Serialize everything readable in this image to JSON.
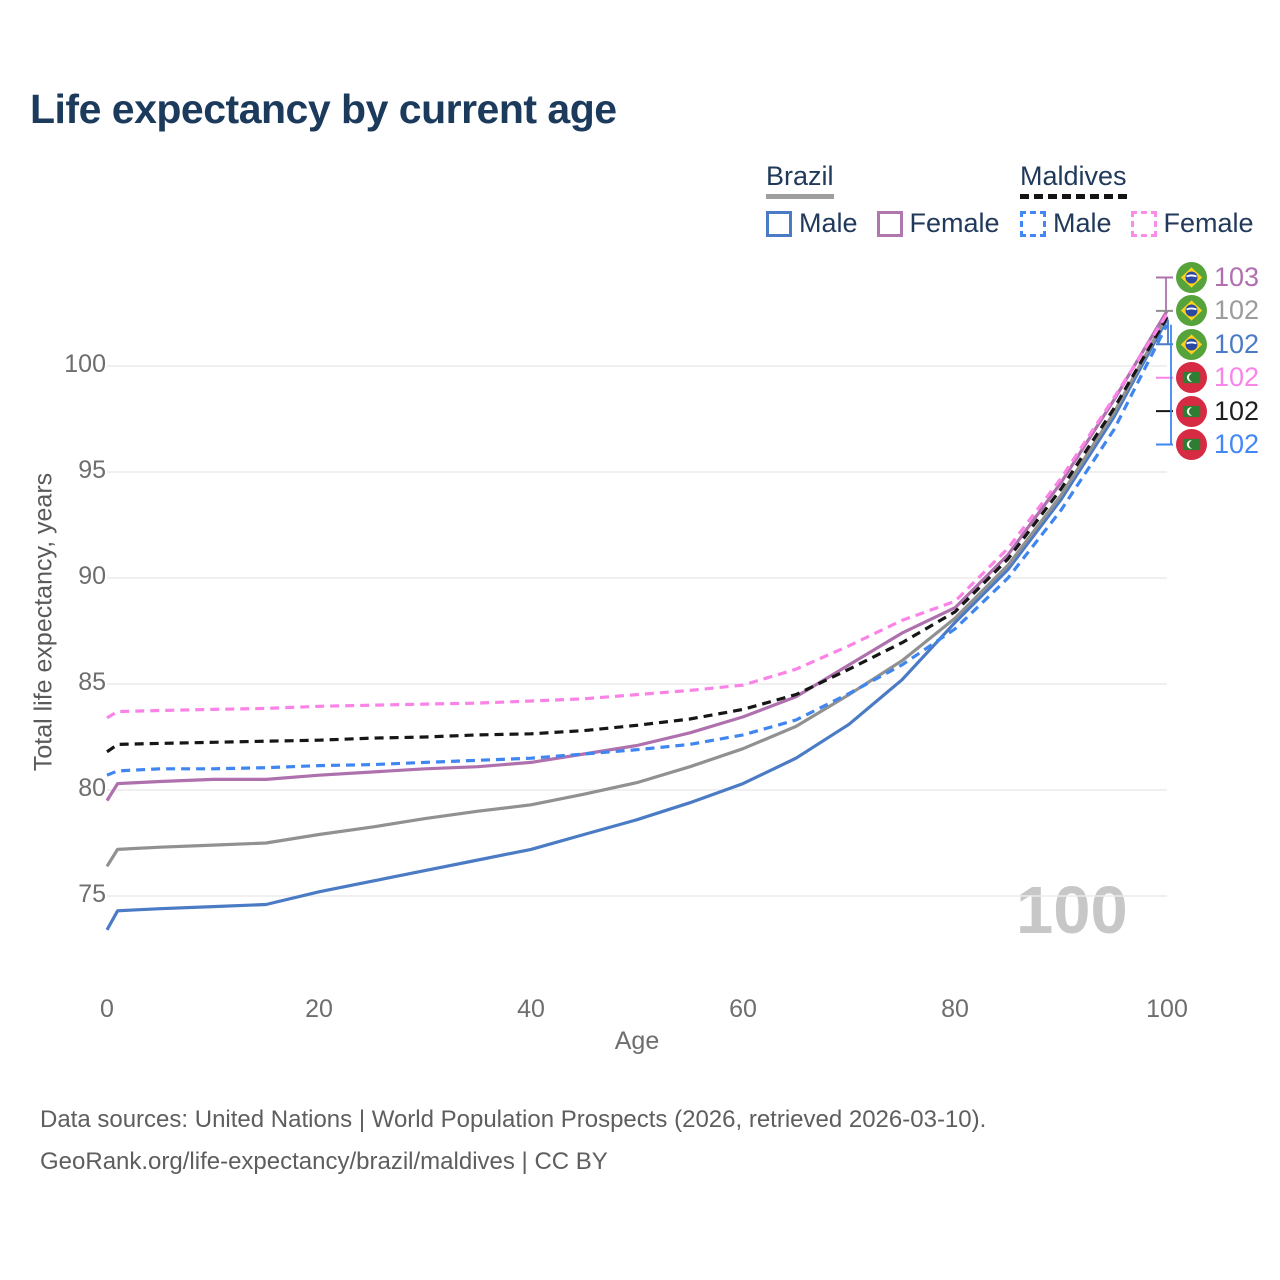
{
  "title": "Life expectancy by current age",
  "legend": {
    "groups": [
      {
        "label": "Brazil",
        "underline_style": "solid",
        "underline_color": "#9e9e9e",
        "items": [
          {
            "label": "Male",
            "color": "#4a7bc4",
            "dash": false
          },
          {
            "label": "Female",
            "color": "#b176ae",
            "dash": false
          }
        ]
      },
      {
        "label": "Maldives",
        "underline_style": "dashed",
        "underline_color": "#141414",
        "items": [
          {
            "label": "Male",
            "color": "#4287f5",
            "dash": true
          },
          {
            "label": "Female",
            "color": "#fb8be8",
            "dash": true
          }
        ]
      }
    ]
  },
  "chart_data": {
    "type": "line",
    "title": "Life expectancy by current age",
    "xlabel": "Age",
    "ylabel": "Total life expectancy, years",
    "watermark": "100",
    "x_axis": {
      "ticks": [
        0,
        20,
        40,
        60,
        80,
        100
      ],
      "range": [
        0,
        100
      ]
    },
    "y_axis": {
      "ticks": [
        75,
        80,
        85,
        90,
        95,
        100
      ],
      "range": [
        73,
        103.5
      ]
    },
    "grid": "horizontal-only",
    "legend_position": "top-right",
    "x": [
      0,
      1,
      5,
      10,
      15,
      20,
      25,
      30,
      35,
      40,
      45,
      50,
      55,
      60,
      65,
      70,
      75,
      80,
      85,
      90,
      95,
      100
    ],
    "series": [
      {
        "name": "Brazil Male",
        "country": "Brazil",
        "sex": "Male",
        "color": "#4a7bc4",
        "dash": false,
        "values": [
          73.4,
          74.3,
          74.4,
          74.5,
          74.6,
          75.2,
          75.7,
          76.2,
          76.7,
          77.2,
          77.9,
          78.6,
          79.4,
          80.3,
          81.5,
          83.1,
          85.2,
          87.9,
          90.4,
          93.7,
          97.6,
          102.2
        ],
        "end_label": {
          "text": "102",
          "color": "#4a7bc4",
          "flag": "brazil",
          "row": 2,
          "leader": true
        }
      },
      {
        "name": "Brazil Both sexes",
        "country": "Brazil",
        "sex": "Both",
        "color": "#919191",
        "dash": false,
        "values": [
          76.4,
          77.2,
          77.3,
          77.4,
          77.5,
          77.9,
          78.25,
          78.65,
          79.0,
          79.3,
          79.8,
          80.35,
          81.1,
          81.95,
          83.0,
          84.5,
          86.1,
          88.1,
          90.6,
          93.9,
          97.8,
          102.35
        ],
        "end_label": {
          "text": "102",
          "color": "#9c9c9c",
          "flag": "brazil",
          "row": 1,
          "leader": false
        }
      },
      {
        "name": "Brazil Female",
        "country": "Brazil",
        "sex": "Female",
        "color": "#ae71ad",
        "dash": false,
        "values": [
          79.5,
          80.3,
          80.4,
          80.5,
          80.5,
          80.7,
          80.85,
          81.0,
          81.1,
          81.3,
          81.7,
          82.1,
          82.7,
          83.45,
          84.4,
          85.9,
          87.4,
          88.6,
          91.1,
          94.5,
          98.4,
          102.6
        ],
        "end_label": {
          "text": "103",
          "color": "#b06fb0",
          "flag": "brazil",
          "row": 0,
          "leader": true
        }
      },
      {
        "name": "Maldives Male",
        "country": "Maldives",
        "sex": "Male",
        "color": "#3f86f0",
        "dash": true,
        "values": [
          80.7,
          80.9,
          81.0,
          81.0,
          81.05,
          81.15,
          81.2,
          81.3,
          81.4,
          81.5,
          81.7,
          81.9,
          82.15,
          82.6,
          83.3,
          84.55,
          85.9,
          87.6,
          90.0,
          93.2,
          97.0,
          101.95
        ],
        "end_label": {
          "text": "102",
          "color": "#4287f5",
          "flag": "maldives",
          "row": 5,
          "leader": true
        }
      },
      {
        "name": "Maldives Both sexes",
        "country": "Maldives",
        "sex": "Both",
        "color": "#161616",
        "dash": true,
        "values": [
          81.8,
          82.15,
          82.2,
          82.25,
          82.3,
          82.35,
          82.45,
          82.5,
          82.6,
          82.65,
          82.8,
          83.05,
          83.35,
          83.8,
          84.5,
          85.7,
          86.95,
          88.4,
          90.9,
          94.2,
          98.0,
          102.3
        ],
        "end_label": {
          "text": "102",
          "color": "#1f1f1f",
          "flag": "maldives",
          "row": 4,
          "leader": false
        }
      },
      {
        "name": "Maldives Female",
        "country": "Maldives",
        "sex": "Female",
        "color": "#fb83e7",
        "dash": true,
        "values": [
          83.4,
          83.7,
          83.75,
          83.8,
          83.85,
          83.95,
          84.0,
          84.05,
          84.1,
          84.2,
          84.3,
          84.5,
          84.7,
          84.95,
          85.7,
          86.8,
          88.0,
          88.9,
          91.4,
          94.7,
          98.5,
          102.45
        ],
        "end_label": {
          "text": "102",
          "color": "#fa85ea",
          "flag": "maldives",
          "row": 3,
          "leader": false
        }
      }
    ]
  },
  "footer": {
    "line1": "Data sources: United Nations | World Population Prospects (2026, retrieved 2026-03-10).",
    "line2": "GeoRank.org/life-expectancy/brazil/maldives | CC BY"
  }
}
